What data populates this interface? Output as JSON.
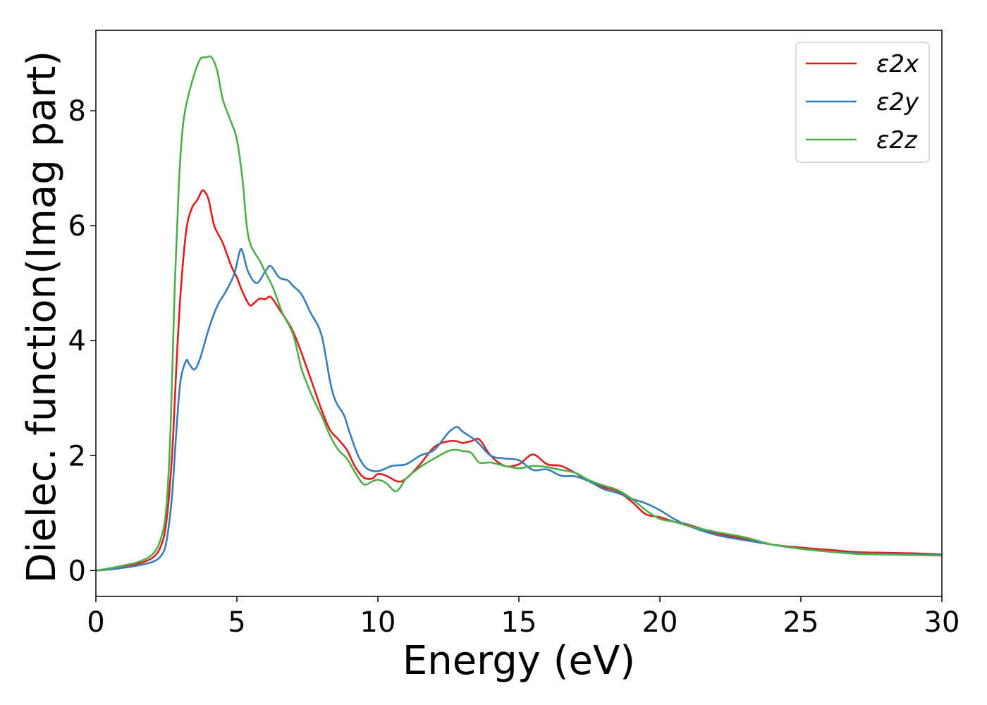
{
  "chart_data": {
    "type": "line",
    "title": "",
    "xlabel": "Energy (eV)",
    "ylabel": "Dielec. function(Imag part)",
    "xlim": [
      0,
      30
    ],
    "ylim": [
      -0.45,
      9.4
    ],
    "xticks": [
      0,
      5,
      10,
      15,
      20,
      25,
      30
    ],
    "yticks": [
      0,
      2,
      4,
      6,
      8
    ],
    "grid": false,
    "legend_position": "top-right",
    "series": [
      {
        "name": "ε2x",
        "color": "#e41a1c",
        "points": [
          [
            0,
            0
          ],
          [
            0.5,
            0.03
          ],
          [
            1,
            0.07
          ],
          [
            1.5,
            0.12
          ],
          [
            2,
            0.22
          ],
          [
            2.3,
            0.42
          ],
          [
            2.5,
            0.85
          ],
          [
            2.7,
            2.0
          ],
          [
            2.85,
            3.5
          ],
          [
            3.0,
            4.8
          ],
          [
            3.2,
            5.9
          ],
          [
            3.4,
            6.3
          ],
          [
            3.6,
            6.45
          ],
          [
            3.75,
            6.6
          ],
          [
            3.85,
            6.6
          ],
          [
            4.0,
            6.45
          ],
          [
            4.2,
            6.0
          ],
          [
            4.5,
            5.7
          ],
          [
            4.8,
            5.3
          ],
          [
            5.0,
            5.1
          ],
          [
            5.2,
            4.85
          ],
          [
            5.45,
            4.62
          ],
          [
            5.6,
            4.65
          ],
          [
            5.8,
            4.73
          ],
          [
            6.0,
            4.72
          ],
          [
            6.2,
            4.76
          ],
          [
            6.5,
            4.55
          ],
          [
            7.0,
            4.15
          ],
          [
            7.5,
            3.5
          ],
          [
            8.0,
            2.8
          ],
          [
            8.3,
            2.45
          ],
          [
            8.6,
            2.28
          ],
          [
            8.9,
            2.1
          ],
          [
            9.2,
            1.8
          ],
          [
            9.5,
            1.62
          ],
          [
            9.8,
            1.6
          ],
          [
            10.0,
            1.68
          ],
          [
            10.3,
            1.65
          ],
          [
            10.7,
            1.55
          ],
          [
            11.0,
            1.6
          ],
          [
            11.5,
            1.85
          ],
          [
            12.0,
            2.15
          ],
          [
            12.5,
            2.25
          ],
          [
            12.8,
            2.25
          ],
          [
            13.0,
            2.22
          ],
          [
            13.3,
            2.25
          ],
          [
            13.6,
            2.28
          ],
          [
            14.0,
            2.0
          ],
          [
            14.5,
            1.82
          ],
          [
            15.0,
            1.85
          ],
          [
            15.5,
            2.02
          ],
          [
            16.0,
            1.85
          ],
          [
            16.5,
            1.82
          ],
          [
            17.0,
            1.7
          ],
          [
            17.5,
            1.55
          ],
          [
            18.0,
            1.45
          ],
          [
            18.5,
            1.38
          ],
          [
            19.0,
            1.2
          ],
          [
            19.5,
            0.98
          ],
          [
            20.0,
            0.93
          ],
          [
            20.5,
            0.85
          ],
          [
            21.0,
            0.8
          ],
          [
            22.0,
            0.65
          ],
          [
            23.0,
            0.55
          ],
          [
            24.0,
            0.45
          ],
          [
            25.0,
            0.4
          ],
          [
            26.0,
            0.36
          ],
          [
            27.0,
            0.32
          ],
          [
            28.0,
            0.31
          ],
          [
            29.0,
            0.3
          ],
          [
            30.0,
            0.28
          ]
        ]
      },
      {
        "name": "ε2y",
        "color": "#377eb8",
        "points": [
          [
            0,
            0
          ],
          [
            0.5,
            0.02
          ],
          [
            1,
            0.05
          ],
          [
            1.5,
            0.09
          ],
          [
            2,
            0.15
          ],
          [
            2.3,
            0.25
          ],
          [
            2.5,
            0.5
          ],
          [
            2.7,
            1.3
          ],
          [
            2.85,
            2.4
          ],
          [
            3.0,
            3.3
          ],
          [
            3.2,
            3.65
          ],
          [
            3.3,
            3.6
          ],
          [
            3.5,
            3.5
          ],
          [
            3.7,
            3.7
          ],
          [
            4.0,
            4.2
          ],
          [
            4.3,
            4.6
          ],
          [
            4.6,
            4.85
          ],
          [
            4.9,
            5.15
          ],
          [
            5.1,
            5.55
          ],
          [
            5.2,
            5.55
          ],
          [
            5.4,
            5.2
          ],
          [
            5.7,
            5.0
          ],
          [
            6.0,
            5.2
          ],
          [
            6.2,
            5.3
          ],
          [
            6.5,
            5.1
          ],
          [
            6.8,
            5.05
          ],
          [
            7.0,
            4.95
          ],
          [
            7.3,
            4.8
          ],
          [
            7.6,
            4.5
          ],
          [
            8.0,
            4.1
          ],
          [
            8.3,
            3.3
          ],
          [
            8.5,
            2.95
          ],
          [
            8.8,
            2.7
          ],
          [
            9.0,
            2.4
          ],
          [
            9.3,
            2.0
          ],
          [
            9.6,
            1.78
          ],
          [
            10.0,
            1.73
          ],
          [
            10.5,
            1.82
          ],
          [
            11.0,
            1.85
          ],
          [
            11.5,
            2.0
          ],
          [
            12.0,
            2.1
          ],
          [
            12.5,
            2.4
          ],
          [
            12.8,
            2.5
          ],
          [
            13.0,
            2.42
          ],
          [
            13.5,
            2.25
          ],
          [
            14.0,
            2.0
          ],
          [
            14.5,
            1.95
          ],
          [
            15.0,
            1.92
          ],
          [
            15.5,
            1.75
          ],
          [
            16.0,
            1.76
          ],
          [
            16.5,
            1.65
          ],
          [
            17.0,
            1.64
          ],
          [
            17.5,
            1.55
          ],
          [
            18.0,
            1.42
          ],
          [
            18.5,
            1.35
          ],
          [
            19.0,
            1.25
          ],
          [
            19.5,
            1.17
          ],
          [
            20.0,
            1.05
          ],
          [
            20.5,
            0.9
          ],
          [
            21.0,
            0.78
          ],
          [
            22.0,
            0.62
          ],
          [
            23.0,
            0.53
          ],
          [
            24.0,
            0.45
          ],
          [
            25.0,
            0.38
          ],
          [
            26.0,
            0.33
          ],
          [
            27.0,
            0.3
          ],
          [
            28.0,
            0.29
          ],
          [
            29.0,
            0.28
          ],
          [
            30.0,
            0.27
          ]
        ]
      },
      {
        "name": "ε2z",
        "color": "#4daf4a",
        "points": [
          [
            0,
            0
          ],
          [
            0.5,
            0.04
          ],
          [
            1,
            0.09
          ],
          [
            1.5,
            0.15
          ],
          [
            2,
            0.28
          ],
          [
            2.3,
            0.55
          ],
          [
            2.5,
            1.1
          ],
          [
            2.65,
            2.5
          ],
          [
            2.8,
            5.0
          ],
          [
            2.95,
            6.8
          ],
          [
            3.1,
            7.8
          ],
          [
            3.3,
            8.3
          ],
          [
            3.5,
            8.65
          ],
          [
            3.7,
            8.9
          ],
          [
            3.9,
            8.93
          ],
          [
            4.1,
            8.93
          ],
          [
            4.3,
            8.7
          ],
          [
            4.5,
            8.2
          ],
          [
            4.8,
            7.8
          ],
          [
            5.0,
            7.5
          ],
          [
            5.2,
            6.8
          ],
          [
            5.35,
            6.0
          ],
          [
            5.5,
            5.65
          ],
          [
            5.8,
            5.4
          ],
          [
            6.0,
            5.2
          ],
          [
            6.3,
            4.9
          ],
          [
            6.6,
            4.5
          ],
          [
            7.0,
            4.1
          ],
          [
            7.3,
            3.5
          ],
          [
            7.7,
            3.0
          ],
          [
            8.0,
            2.7
          ],
          [
            8.3,
            2.35
          ],
          [
            8.6,
            2.1
          ],
          [
            8.9,
            1.95
          ],
          [
            9.2,
            1.7
          ],
          [
            9.5,
            1.5
          ],
          [
            9.8,
            1.55
          ],
          [
            10.0,
            1.58
          ],
          [
            10.3,
            1.52
          ],
          [
            10.6,
            1.38
          ],
          [
            10.8,
            1.45
          ],
          [
            11.0,
            1.6
          ],
          [
            11.5,
            1.8
          ],
          [
            12.0,
            1.95
          ],
          [
            12.5,
            2.08
          ],
          [
            12.8,
            2.1
          ],
          [
            13.0,
            2.08
          ],
          [
            13.3,
            2.05
          ],
          [
            13.6,
            1.88
          ],
          [
            14.0,
            1.88
          ],
          [
            14.5,
            1.82
          ],
          [
            15.0,
            1.78
          ],
          [
            15.5,
            1.82
          ],
          [
            16.0,
            1.8
          ],
          [
            16.5,
            1.75
          ],
          [
            17.0,
            1.7
          ],
          [
            17.5,
            1.57
          ],
          [
            18.0,
            1.48
          ],
          [
            18.5,
            1.4
          ],
          [
            19.0,
            1.25
          ],
          [
            19.5,
            1.05
          ],
          [
            20.0,
            0.9
          ],
          [
            20.5,
            0.85
          ],
          [
            21.0,
            0.78
          ],
          [
            22.0,
            0.67
          ],
          [
            23.0,
            0.58
          ],
          [
            24.0,
            0.45
          ],
          [
            25.0,
            0.38
          ],
          [
            26.0,
            0.33
          ],
          [
            27.0,
            0.29
          ],
          [
            28.0,
            0.28
          ],
          [
            29.0,
            0.27
          ],
          [
            30.0,
            0.26
          ]
        ]
      }
    ]
  }
}
